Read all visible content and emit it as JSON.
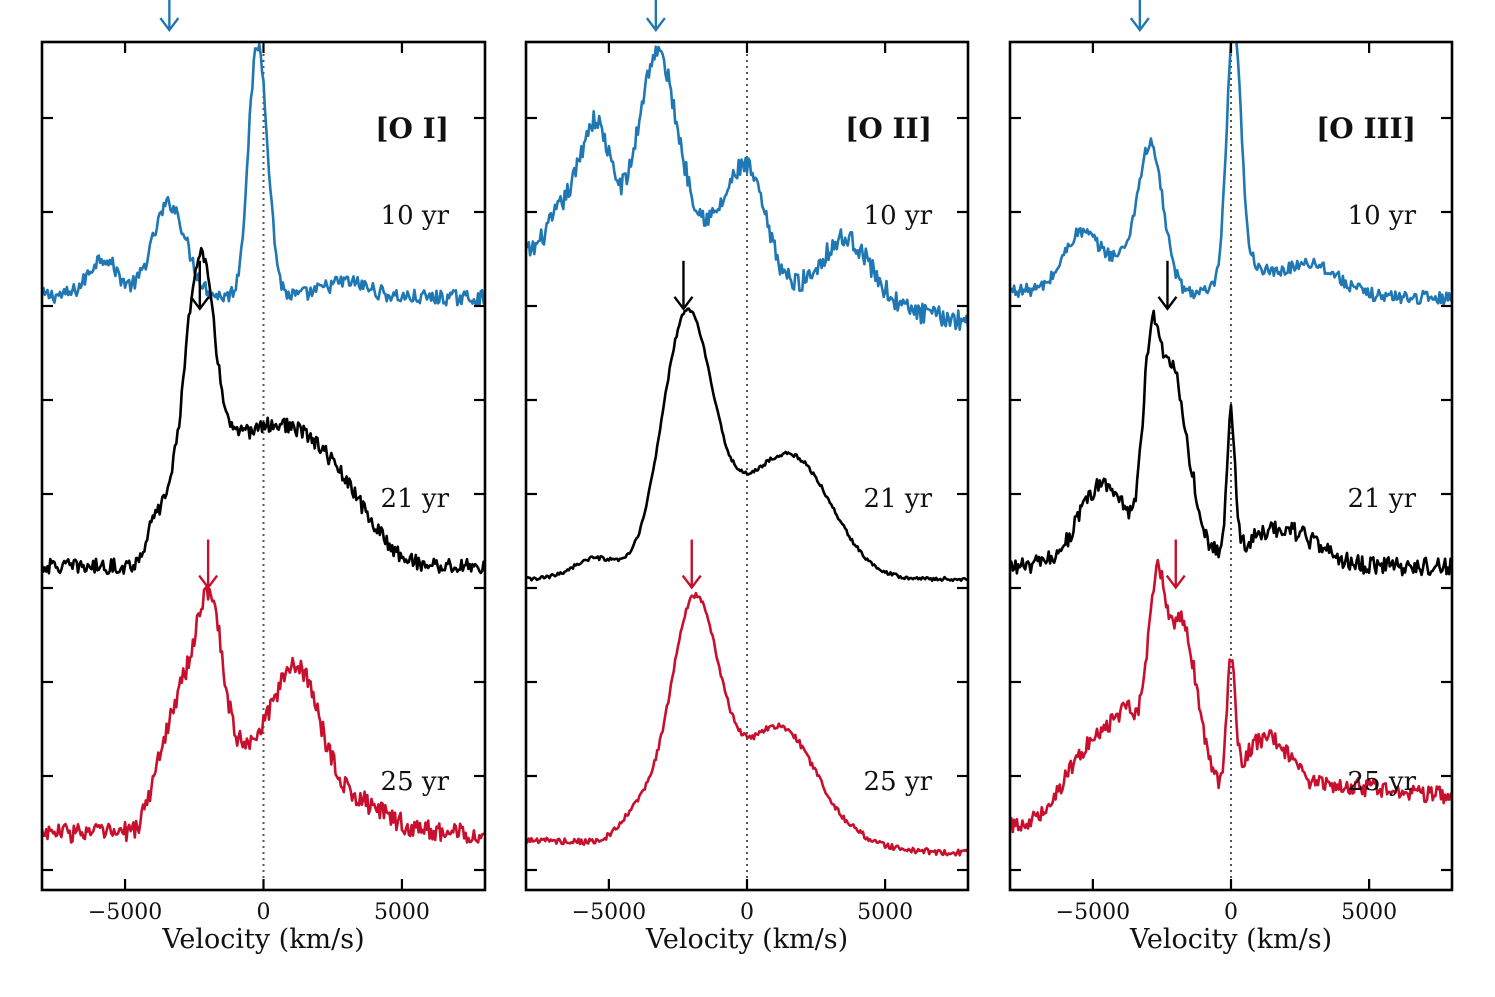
{
  "chart_data": {
    "type": "line",
    "colors": {
      "10 yr": "#1f77b4",
      "21 yr": "#000000",
      "25 yr": "#c8102e"
    },
    "x_ticks": [
      -5000,
      0,
      5000
    ],
    "x_tick_labels": [
      "−5000",
      "0",
      "5000"
    ],
    "panels": [
      {
        "title": "[O I]",
        "xlabel": "Velocity (km/s)",
        "xlim": [
          -8000,
          8000
        ],
        "series": [
          {
            "name": "10 yr",
            "offset": 2,
            "features": [
              {
                "v": -5800,
                "a": 0.15,
                "w": 500
              },
              {
                "v": -3400,
                "a": 0.36,
                "w": 600
              },
              {
                "v": -200,
                "a": 0.98,
                "w": 350
              },
              {
                "v": 3000,
                "a": 0.06,
                "w": 800
              }
            ],
            "continuum": [
              0.02,
              0.01
            ],
            "noise": 0.03,
            "cut": [
              -2000,
              -600,
              0.55
            ],
            "arrow_v": -3400
          },
          {
            "name": "21 yr",
            "offset": 1,
            "features": [
              {
                "v": -2300,
                "a": 0.85,
                "w": 500
              },
              {
                "v": -1200,
                "a": 0.35,
                "w": 2500
              },
              {
                "v": 1800,
                "a": 0.33,
                "w": 2200
              }
            ],
            "continuum": [
              0.05,
              0.05
            ],
            "noise": 0.03,
            "edges": [
              -4300,
              4500
            ],
            "arrow_v": -2300
          },
          {
            "name": "25 yr",
            "offset": 0,
            "features": [
              {
                "v": -2900,
                "a": 0.5,
                "w": 800
              },
              {
                "v": -1900,
                "a": 0.55,
                "w": 450
              },
              {
                "v": 0,
                "a": 0.35,
                "w": 1500
              },
              {
                "v": 1300,
                "a": 0.35,
                "w": 700
              },
              {
                "v": 3000,
                "a": 0.12,
                "w": 1500
              }
            ],
            "continuum": [
              0.1,
              0.1
            ],
            "noise": 0.04,
            "edges": [
              -4500,
              5500
            ],
            "arrow_v": -2000
          }
        ]
      },
      {
        "title": "[O II]",
        "xlabel": "Velocity (km/s)",
        "xlim": [
          -8000,
          8000
        ],
        "series": [
          {
            "name": "10 yr",
            "offset": 2,
            "features": [
              {
                "v": -5500,
                "a": 0.55,
                "w": 600
              },
              {
                "v": -3300,
                "a": 0.75,
                "w": 700
              },
              {
                "v": -6800,
                "a": 0.15,
                "w": 500
              },
              {
                "v": -2000,
                "a": 0.2,
                "w": 1200
              },
              {
                "v": 0,
                "a": 0.42,
                "w": 700
              },
              {
                "v": 3600,
                "a": 0.25,
                "w": 900
              }
            ],
            "continuum": [
              0.18,
              -0.08
            ],
            "noise": 0.04,
            "arrow_v": -3300
          },
          {
            "name": "21 yr",
            "offset": 1,
            "features": [
              {
                "v": -2200,
                "a": 0.95,
                "w": 900
              },
              {
                "v": -5500,
                "a": 0.08,
                "w": 800
              },
              {
                "v": 500,
                "a": 0.3,
                "w": 1800
              },
              {
                "v": 2000,
                "a": 0.25,
                "w": 1300
              }
            ],
            "continuum": [
              0.0,
              0.0
            ],
            "noise": 0.008,
            "arrow_v": -2300
          },
          {
            "name": "25 yr",
            "offset": 0,
            "features": [
              {
                "v": -1900,
                "a": 0.95,
                "w": 900
              },
              {
                "v": -4000,
                "a": 0.1,
                "w": 600
              },
              {
                "v": 300,
                "a": 0.25,
                "w": 1000
              },
              {
                "v": 1600,
                "a": 0.3,
                "w": 1000
              },
              {
                "v": 3000,
                "a": 0.08,
                "w": 1200
              }
            ],
            "continuum": [
              0.07,
              0.02
            ],
            "noise": 0.012,
            "arrow_v": -2000
          }
        ]
      },
      {
        "title": "[O III]",
        "xlabel": "Velocity (km/s)",
        "xlim": [
          -8000,
          8000
        ],
        "series": [
          {
            "name": "10 yr",
            "offset": 2,
            "features": [
              {
                "v": -5500,
                "a": 0.2,
                "w": 600
              },
              {
                "v": -2900,
                "a": 0.52,
                "w": 450
              },
              {
                "v": -4000,
                "a": 0.12,
                "w": 900
              },
              {
                "v": 100,
                "a": 0.96,
                "w": 250
              },
              {
                "v": 500,
                "a": 0.12,
                "w": 600
              },
              {
                "v": 2800,
                "a": 0.13,
                "w": 1000
              }
            ],
            "continuum": [
              0.04,
              0.01
            ],
            "noise": 0.025,
            "arrow_v": -3300
          },
          {
            "name": "21 yr",
            "offset": 1,
            "features": [
              {
                "v": -2900,
                "a": 0.75,
                "w": 300
              },
              {
                "v": -2200,
                "a": 0.6,
                "w": 400
              },
              {
                "v": -4600,
                "a": 0.32,
                "w": 900
              },
              {
                "v": -1600,
                "a": 0.3,
                "w": 500
              },
              {
                "v": 0,
                "a": 0.55,
                "w": 150
              },
              {
                "v": 1800,
                "a": 0.15,
                "w": 1200
              }
            ],
            "continuum": [
              0.05,
              0.05
            ],
            "noise": 0.035,
            "arrow_v": -2300
          },
          {
            "name": "25 yr",
            "offset": 0,
            "features": [
              {
                "v": -2700,
                "a": 0.6,
                "w": 300
              },
              {
                "v": -1800,
                "a": 0.75,
                "w": 600
              },
              {
                "v": -5000,
                "a": 0.3,
                "w": 1000
              },
              {
                "v": -3600,
                "a": 0.3,
                "w": 600
              },
              {
                "v": 0,
                "a": 0.5,
                "w": 150
              },
              {
                "v": 1200,
                "a": 0.25,
                "w": 900
              },
              {
                "v": 4000,
                "a": 0.08,
                "w": 2500
              }
            ],
            "continuum": [
              0.12,
              0.22
            ],
            "noise": 0.035,
            "arrow_v": -2000
          }
        ]
      }
    ]
  }
}
